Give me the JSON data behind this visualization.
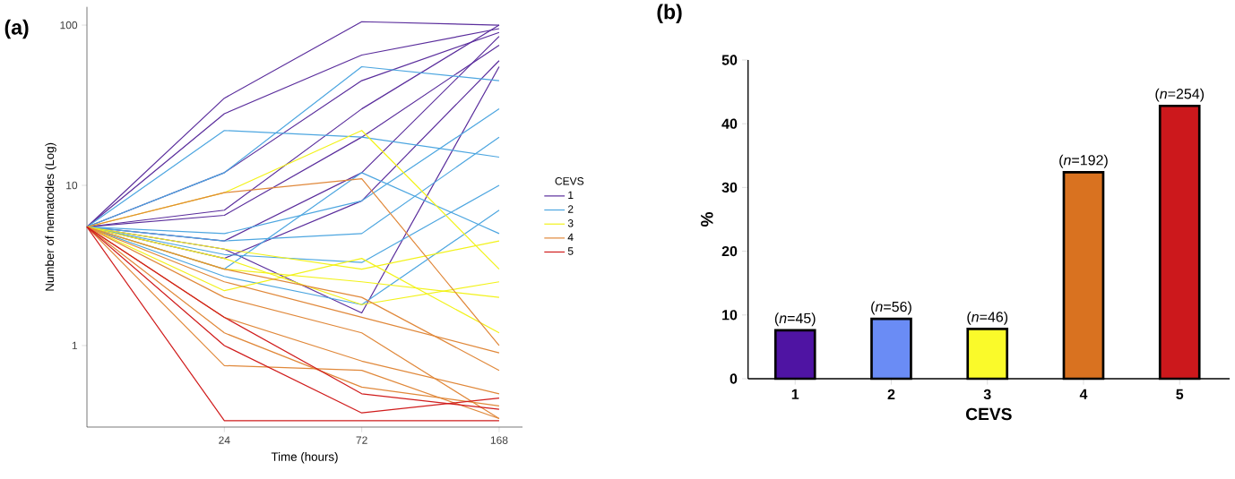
{
  "chart_data": [
    {
      "type": "line",
      "title": "(a)",
      "xlabel": "Time (hours)",
      "ylabel": "Number of nematodes (Log)",
      "categories": [
        null,
        "24",
        "72",
        "168"
      ],
      "log": true,
      "ylim": [
        0.31,
        130
      ],
      "yticks": [
        1,
        10,
        100
      ],
      "grid": false,
      "legend": "right",
      "legend_title": "CEVS",
      "marker": "none",
      "line_style": "solid",
      "series": [
        {
          "name": "1",
          "color": "#5a2d9c",
          "values": [
            5.5,
            35,
            105,
            100
          ]
        },
        {
          "color": "#5a2d9c",
          "values": [
            5.5,
            28,
            65,
            95
          ]
        },
        {
          "color": "#5a2d9c",
          "values": [
            5.5,
            12,
            45,
            90
          ]
        },
        {
          "color": "#5a2d9c",
          "values": [
            5.5,
            7,
            30,
            100
          ]
        },
        {
          "color": "#5a2d9c",
          "values": [
            5.5,
            4.5,
            12,
            85
          ]
        },
        {
          "color": "#5a2d9c",
          "values": [
            5.5,
            3.5,
            8,
            60
          ]
        },
        {
          "color": "#5a2d9c",
          "values": [
            5.5,
            4,
            1.6,
            55
          ]
        },
        {
          "color": "#5a2d9c",
          "values": [
            5.5,
            6.5,
            20,
            75
          ]
        },
        {
          "name": "2",
          "color": "#4da6e0",
          "values": [
            5.5,
            22,
            20,
            15
          ]
        },
        {
          "color": "#4da6e0",
          "values": [
            5.5,
            12,
            55,
            45
          ]
        },
        {
          "color": "#4da6e0",
          "values": [
            5.5,
            5,
            8,
            30
          ]
        },
        {
          "color": "#4da6e0",
          "values": [
            5.5,
            3.7,
            3.3,
            10
          ]
        },
        {
          "color": "#4da6e0",
          "values": [
            5.5,
            2.7,
            1.8,
            7
          ]
        },
        {
          "color": "#4da6e0",
          "values": [
            5.5,
            4.5,
            5,
            20
          ]
        },
        {
          "color": "#4da6e0",
          "values": [
            5.5,
            3,
            12,
            5
          ]
        },
        {
          "name": "3",
          "color": "#f2f21a",
          "values": [
            5.5,
            9,
            22,
            3
          ]
        },
        {
          "color": "#f2f21a",
          "values": [
            5.5,
            4,
            3,
            4.5
          ]
        },
        {
          "color": "#f2f21a",
          "values": [
            5.5,
            3,
            2.5,
            2
          ]
        },
        {
          "color": "#f2f21a",
          "values": [
            5.5,
            2.2,
            3.5,
            1.2
          ]
        },
        {
          "color": "#f2f21a",
          "values": [
            5.5,
            3.5,
            1.8,
            2.5
          ]
        },
        {
          "name": "4",
          "color": "#e0883a",
          "values": [
            5.5,
            9,
            11,
            1
          ]
        },
        {
          "color": "#e0883a",
          "values": [
            5.5,
            3,
            2,
            0.7
          ]
        },
        {
          "color": "#e0883a",
          "values": [
            5.5,
            2,
            1.2,
            0.35
          ]
        },
        {
          "color": "#e0883a",
          "values": [
            5.5,
            1.5,
            0.8,
            0.5
          ]
        },
        {
          "color": "#e0883a",
          "values": [
            5.5,
            0.75,
            0.7,
            0.35
          ]
        },
        {
          "color": "#e0883a",
          "values": [
            5.5,
            2.5,
            1.5,
            0.9
          ]
        },
        {
          "color": "#e0883a",
          "values": [
            5.5,
            1.2,
            0.55,
            0.42
          ]
        },
        {
          "name": "5",
          "color": "#d01c1c",
          "values": [
            5.5,
            0.34,
            0.34,
            0.34
          ]
        },
        {
          "color": "#d01c1c",
          "values": [
            5.5,
            1.5,
            0.5,
            0.4
          ]
        },
        {
          "color": "#d01c1c",
          "values": [
            5.5,
            1,
            0.38,
            0.47
          ]
        }
      ]
    },
    {
      "type": "bar",
      "title": "(b)",
      "xlabel": "CEVS",
      "ylabel": "%",
      "categories": [
        "1",
        "2",
        "3",
        "4",
        "5"
      ],
      "values": [
        7.6,
        9.4,
        7.8,
        32.4,
        42.8
      ],
      "colors": [
        "#4f14a3",
        "#6a8cf5",
        "#fafa2a",
        "#d97220",
        "#cc181c"
      ],
      "annotations": [
        {
          "text": "(*n*=45)",
          "x": "1",
          "y": 7.6
        },
        {
          "text": "(*n*=56)",
          "x": "2",
          "y": 9.4
        },
        {
          "text": "(*n*=46)",
          "x": "3",
          "y": 7.8
        },
        {
          "text": "(*n*=192)",
          "x": "4",
          "y": 32.4
        },
        {
          "text": "(*n*=254)",
          "x": "5",
          "y": 42.8
        }
      ],
      "ylim": [
        0,
        50
      ],
      "yticks": [
        0,
        10,
        20,
        30,
        40,
        50
      ],
      "grid": false
    }
  ]
}
